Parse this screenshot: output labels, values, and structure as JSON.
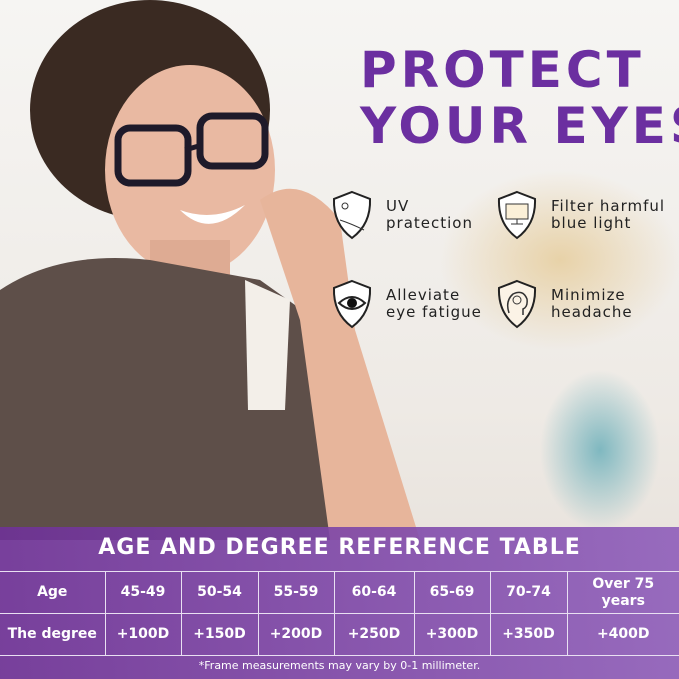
{
  "headline": {
    "line1": "PROTECT",
    "line2": "YOUR EYES",
    "color": "#6b2fa0"
  },
  "features": [
    {
      "icon": "uv-sun-shield-icon",
      "line1": "UV",
      "line2": "pratection"
    },
    {
      "icon": "monitor-shield-icon",
      "line1": "Filter harmful",
      "line2": "blue light"
    },
    {
      "icon": "eye-shield-icon",
      "line1": "Alleviate",
      "line2": "eye fatigue"
    },
    {
      "icon": "head-shield-icon",
      "line1": "Minimize",
      "line2": "headache"
    }
  ],
  "table": {
    "title": "AGE AND DEGREE REFERENCE TABLE",
    "rows": [
      [
        "Age",
        "45-49",
        "50-54",
        "55-59",
        "60-64",
        "65-69",
        "70-74",
        "Over 75 years"
      ],
      [
        "The degree",
        "+100D",
        "+150D",
        "+200D",
        "+250D",
        "+300D",
        "+350D",
        "+400D"
      ]
    ],
    "note": "*Frame measurements may vary by 0-1 millimeter."
  }
}
